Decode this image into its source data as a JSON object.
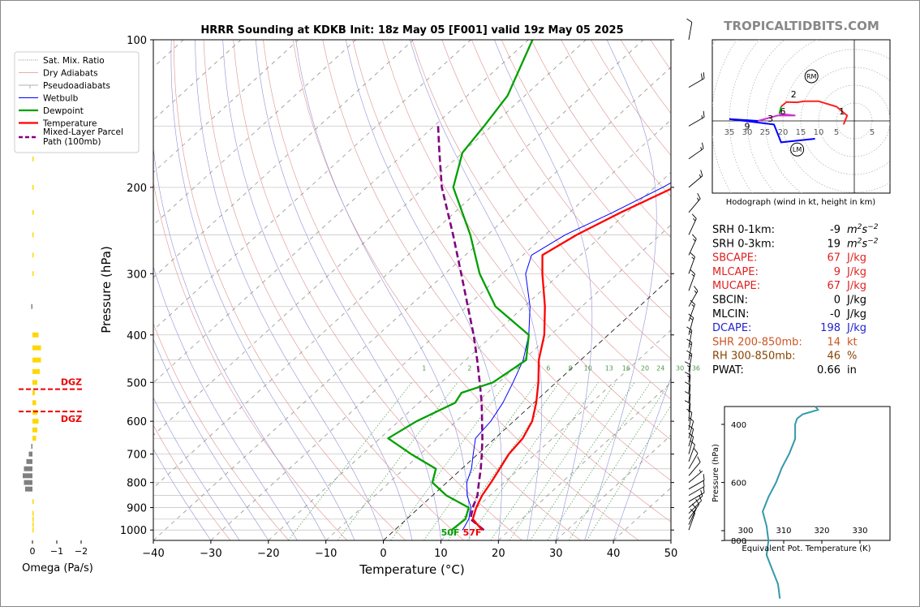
{
  "title": "HRRR Sounding at KDKB Init: 18z May 05 [F001] valid 19z May 05 2025",
  "brand": "TROPICALTIDBITS.COM",
  "chart_data": [
    {
      "type": "line",
      "name": "skewt",
      "xlabel": "Temperature (°C)",
      "ylabel": "Pressure (hPa)",
      "xlim": [
        -40,
        50
      ],
      "ylim": [
        1050,
        100
      ],
      "y_scale": "log",
      "x_ticks": [
        "−40",
        "−30",
        "−20",
        "−10",
        "0",
        "10",
        "20",
        "30",
        "40",
        "50"
      ],
      "y_ticks": [
        "100",
        "200",
        "300",
        "400",
        "500",
        "600",
        "700",
        "800",
        "900",
        "1000"
      ],
      "legend": {
        "placement": "upper-left (outside)",
        "entries": [
          "Sat. Mix. Ratio",
          "Dry Adiabats",
          "Pseudoadiabats",
          "Wetbulb",
          "Dewpoint",
          "Temperature",
          "Mixed-Layer Parcel Path (100mb)"
        ]
      },
      "mixing_ratio_labels": [
        "1",
        "2",
        "4",
        "6",
        "8",
        "10",
        "13",
        "16",
        "20",
        "24",
        "30",
        "36"
      ],
      "colors": {
        "temperature": "#ff0000",
        "dewpoint": "#00a000",
        "wetbulb": "#0000ff",
        "parcel": "#800080"
      },
      "series": [
        {
          "name": "Temperature",
          "points": [
            [
              1000,
              15.2
            ],
            [
              950,
              11.5
            ],
            [
              900,
              9.9
            ],
            [
              850,
              8.6
            ],
            [
              800,
              7.7
            ],
            [
              750,
              6.6
            ],
            [
              700,
              5.4
            ],
            [
              650,
              4.8
            ],
            [
              600,
              3.2
            ],
            [
              550,
              0.4
            ],
            [
              500,
              -3.1
            ],
            [
              450,
              -7.3
            ],
            [
              400,
              -11.1
            ],
            [
              350,
              -16.4
            ],
            [
              300,
              -23.1
            ],
            [
              275,
              -26.6
            ],
            [
              250,
              -24.5
            ],
            [
              225,
              -21.1
            ],
            [
              200,
              -16.6
            ],
            [
              175,
              -13.1
            ],
            [
              150,
              -9.7
            ],
            [
              125,
              -6.0
            ],
            [
              100,
              -3.3
            ]
          ]
        },
        {
          "name": "Dewpoint",
          "points": [
            [
              1000,
              9.9
            ],
            [
              950,
              10.2
            ],
            [
              900,
              8.6
            ],
            [
              850,
              2.4
            ],
            [
              800,
              -2.5
            ],
            [
              750,
              -4.5
            ],
            [
              700,
              -11.6
            ],
            [
              650,
              -18.6
            ],
            [
              600,
              -16.9
            ],
            [
              550,
              -13.7
            ],
            [
              525,
              -14.5
            ],
            [
              500,
              -11.0
            ],
            [
              450,
              -9.5
            ],
            [
              400,
              -13.8
            ],
            [
              350,
              -25.0
            ],
            [
              300,
              -34.0
            ],
            [
              250,
              -43.0
            ],
            [
              200,
              -55.0
            ],
            [
              170,
              -60.0
            ],
            [
              150,
              -61.3
            ],
            [
              130,
              -63.0
            ],
            [
              100,
              -69.3
            ]
          ]
        },
        {
          "name": "Wetbulb",
          "points": [
            [
              1000,
              11.8
            ],
            [
              950,
              10.8
            ],
            [
              900,
              9.0
            ],
            [
              850,
              6.0
            ],
            [
              800,
              3.5
            ],
            [
              750,
              1.7
            ],
            [
              700,
              -0.8
            ],
            [
              650,
              -3.4
            ],
            [
              600,
              -4.0
            ],
            [
              550,
              -5.4
            ],
            [
              500,
              -7.5
            ],
            [
              450,
              -10.0
            ],
            [
              400,
              -13.8
            ],
            [
              350,
              -19.0
            ],
            [
              300,
              -26.0
            ],
            [
              275,
              -28.5
            ],
            [
              250,
              -26.5
            ],
            [
              225,
              -22.5
            ],
            [
              200,
              -18.6
            ],
            [
              175,
              -15.0
            ],
            [
              150,
              -11.5
            ],
            [
              125,
              -7.5
            ],
            [
              100,
              -4.1
            ]
          ]
        },
        {
          "name": "Mixed-Layer Parcel Path (100mb)",
          "points": [
            [
              1000,
              15.5
            ],
            [
              950,
              11.1
            ],
            [
              900,
              9.3
            ],
            [
              850,
              7.8
            ],
            [
              800,
              5.6
            ],
            [
              750,
              3.3
            ],
            [
              700,
              0.7
            ],
            [
              650,
              -2.2
            ],
            [
              600,
              -5.5
            ],
            [
              550,
              -9.1
            ],
            [
              500,
              -13.3
            ],
            [
              450,
              -18.0
            ],
            [
              400,
              -23.4
            ],
            [
              350,
              -29.8
            ],
            [
              300,
              -37.2
            ],
            [
              250,
              -46.0
            ],
            [
              200,
              -57.0
            ],
            [
              170,
              -64.0
            ],
            [
              150,
              -69.3
            ]
          ]
        }
      ],
      "surface_labels": {
        "dewpoint": "50F",
        "temperature": "57F"
      },
      "dgz_label": "DGZ"
    },
    {
      "type": "bar",
      "name": "omega",
      "xlabel": "Omega (Pa/s)",
      "x_ticks": [
        "0",
        "−1",
        "−2"
      ],
      "bars": [
        {
          "p": 1000,
          "v": 0.05,
          "color": "#ffd700"
        },
        {
          "p": 975,
          "v": 0.05,
          "color": "#ffd700"
        },
        {
          "p": 950,
          "v": 0.05,
          "color": "#ffd700"
        },
        {
          "p": 925,
          "v": 0.05,
          "color": "#ffd700"
        },
        {
          "p": 875,
          "v": 0.05,
          "color": "#ffd700"
        },
        {
          "p": 825,
          "v": -0.3,
          "color": "#808080"
        },
        {
          "p": 800,
          "v": -0.35,
          "color": "#808080"
        },
        {
          "p": 775,
          "v": -0.4,
          "color": "#808080"
        },
        {
          "p": 750,
          "v": -0.35,
          "color": "#808080"
        },
        {
          "p": 725,
          "v": -0.25,
          "color": "#808080"
        },
        {
          "p": 700,
          "v": -0.15,
          "color": "#808080"
        },
        {
          "p": 675,
          "v": -0.05,
          "color": "#808080"
        },
        {
          "p": 650,
          "v": 0.15,
          "color": "#ffd700"
        },
        {
          "p": 625,
          "v": 0.2,
          "color": "#ffd700"
        },
        {
          "p": 600,
          "v": 0.25,
          "color": "#ffd700"
        },
        {
          "p": 575,
          "v": 0.2,
          "color": "#ffd700"
        },
        {
          "p": 550,
          "v": 0.15,
          "color": "#ffd700"
        },
        {
          "p": 525,
          "v": 0.1,
          "color": "#ffd700"
        },
        {
          "p": 500,
          "v": 0.2,
          "color": "#ffd700"
        },
        {
          "p": 475,
          "v": 0.3,
          "color": "#ffd700"
        },
        {
          "p": 450,
          "v": 0.35,
          "color": "#ffd700"
        },
        {
          "p": 425,
          "v": 0.35,
          "color": "#ffd700"
        },
        {
          "p": 400,
          "v": 0.25,
          "color": "#ffd700"
        },
        {
          "p": 350,
          "v": -0.05,
          "color": "#808080"
        },
        {
          "p": 300,
          "v": 0.05,
          "color": "#ffd700"
        },
        {
          "p": 275,
          "v": 0.05,
          "color": "#ffd700"
        },
        {
          "p": 250,
          "v": 0.05,
          "color": "#ffd700"
        },
        {
          "p": 225,
          "v": 0.05,
          "color": "#ffd700"
        },
        {
          "p": 200,
          "v": 0.05,
          "color": "#ffd700"
        },
        {
          "p": 175,
          "v": 0.05,
          "color": "#ffd700"
        }
      ],
      "dgz_lines_p": [
        516,
        573
      ]
    },
    {
      "type": "line",
      "name": "hodograph",
      "caption": "Hodograph (wind in kt, height in km)",
      "ring_labels": [
        "35",
        "30",
        "25",
        "20",
        "15",
        "10",
        "5",
        "5"
      ],
      "height_labels": [
        "1",
        "2",
        "3",
        "6",
        "9"
      ],
      "motion_labels": [
        "RM",
        "LM"
      ],
      "segments": [
        {
          "color": "#ff2020",
          "points": [
            [
              -3,
              -1
            ],
            [
              -2,
              1.5
            ],
            [
              -5,
              4
            ],
            [
              -10,
              5.5
            ],
            [
              -14,
              5.5
            ],
            [
              -16,
              5.2
            ],
            [
              -19,
              5.3
            ],
            [
              -20.5,
              4
            ]
          ]
        },
        {
          "color": "#00b000",
          "points": [
            [
              -20.5,
              4
            ],
            [
              -21,
              2
            ]
          ]
        },
        {
          "color": "#cc33cc",
          "points": [
            [
              -21,
              2
            ],
            [
              -16.5,
              1.5
            ],
            [
              -21.5,
              1.5
            ],
            [
              -27,
              0
            ]
          ]
        },
        {
          "color": "#0000ff",
          "points": [
            [
              -27,
              0
            ],
            [
              -35,
              0.5
            ],
            [
              -22.5,
              -1
            ],
            [
              -20.5,
              -6
            ],
            [
              -11,
              -5
            ]
          ]
        }
      ],
      "rm": [
        -12,
        12.5
      ],
      "lm": [
        -16,
        -8
      ]
    },
    {
      "type": "line",
      "name": "theta-e",
      "xlabel": "Equivalent Pot. Temperature (K)",
      "ylabel": "Pressure (hPa)",
      "x_ticks": [
        "300",
        "310",
        "320",
        "330"
      ],
      "y_ticks": [
        "400",
        "600",
        "800"
      ],
      "color": "#3399aa",
      "points": [
        [
          1000,
          309
        ],
        [
          950,
          308.5
        ],
        [
          900,
          307
        ],
        [
          850,
          305.5
        ],
        [
          800,
          306
        ],
        [
          750,
          305.5
        ],
        [
          700,
          304.5
        ],
        [
          650,
          306
        ],
        [
          600,
          308
        ],
        [
          550,
          309.5
        ],
        [
          500,
          311.5
        ],
        [
          450,
          313
        ],
        [
          400,
          313
        ],
        [
          380,
          313.5
        ],
        [
          365,
          315
        ],
        [
          350,
          319
        ]
      ]
    }
  ],
  "stats": [
    {
      "label": "SRH 0-1km:",
      "value": "-9",
      "unit": "m2s-2",
      "color": "#000000"
    },
    {
      "label": "SRH 0-3km:",
      "value": "19",
      "unit": "m2s-2",
      "color": "#000000"
    },
    {
      "label": "SBCAPE:",
      "value": "67",
      "unit": "J/kg",
      "color": "#dd2222"
    },
    {
      "label": "MLCAPE:",
      "value": "9",
      "unit": "J/kg",
      "color": "#dd2222"
    },
    {
      "label": "MUCAPE:",
      "value": "67",
      "unit": "J/kg",
      "color": "#dd2222"
    },
    {
      "label": "SBCIN:",
      "value": "0",
      "unit": "J/kg",
      "color": "#000000"
    },
    {
      "label": "MLCIN:",
      "value": "-0",
      "unit": "J/kg",
      "color": "#000000"
    },
    {
      "label": "DCAPE:",
      "value": "198",
      "unit": "J/kg",
      "color": "#2222cc"
    },
    {
      "label": "SHR 200-850mb:",
      "value": "14",
      "unit": "kt",
      "color": "#cc5522"
    },
    {
      "label": "RH 300-850mb:",
      "value": "46",
      "unit": "%",
      "color": "#884400"
    },
    {
      "label": "PWAT:",
      "value": "0.66",
      "unit": "in",
      "color": "#000000"
    }
  ],
  "wind_barbs": [
    {
      "p": 1000,
      "spd": 10,
      "dir": 20
    },
    {
      "p": 975,
      "spd": 10,
      "dir": 25
    },
    {
      "p": 950,
      "spd": 10,
      "dir": 35
    },
    {
      "p": 925,
      "spd": 10,
      "dir": 45
    },
    {
      "p": 900,
      "spd": 10,
      "dir": 50
    },
    {
      "p": 875,
      "spd": 10,
      "dir": 60
    },
    {
      "p": 850,
      "spd": 10,
      "dir": 60
    },
    {
      "p": 825,
      "spd": 10,
      "dir": 60
    },
    {
      "p": 800,
      "spd": 5,
      "dir": 50
    },
    {
      "p": 775,
      "spd": 10,
      "dir": 40
    },
    {
      "p": 750,
      "spd": 10,
      "dir": 30
    },
    {
      "p": 725,
      "spd": 10,
      "dir": 20
    },
    {
      "p": 700,
      "spd": 10,
      "dir": 15
    },
    {
      "p": 675,
      "spd": 10,
      "dir": 15
    },
    {
      "p": 650,
      "spd": 10,
      "dir": 15
    },
    {
      "p": 625,
      "spd": 10,
      "dir": 10
    },
    {
      "p": 600,
      "spd": 10,
      "dir": 5
    },
    {
      "p": 575,
      "spd": 10,
      "dir": 5
    },
    {
      "p": 550,
      "spd": 10,
      "dir": 5
    },
    {
      "p": 525,
      "spd": 15,
      "dir": 5
    },
    {
      "p": 500,
      "spd": 15,
      "dir": 5
    },
    {
      "p": 475,
      "spd": 15,
      "dir": 10
    },
    {
      "p": 450,
      "spd": 15,
      "dir": 10
    },
    {
      "p": 425,
      "spd": 15,
      "dir": 10
    },
    {
      "p": 400,
      "spd": 15,
      "dir": 15
    },
    {
      "p": 375,
      "spd": 15,
      "dir": 20
    },
    {
      "p": 350,
      "spd": 15,
      "dir": 30
    },
    {
      "p": 325,
      "spd": 15,
      "dir": 20
    },
    {
      "p": 300,
      "spd": 15,
      "dir": 20
    },
    {
      "p": 275,
      "spd": 15,
      "dir": 25
    },
    {
      "p": 250,
      "spd": 15,
      "dir": 25
    },
    {
      "p": 225,
      "spd": 15,
      "dir": 40
    },
    {
      "p": 200,
      "spd": 15,
      "dir": 50
    },
    {
      "p": 175,
      "spd": 15,
      "dir": 55
    },
    {
      "p": 150,
      "spd": 15,
      "dir": 60
    },
    {
      "p": 125,
      "spd": 20,
      "dir": 60
    },
    {
      "p": 100,
      "spd": 10,
      "dir": 10
    }
  ]
}
